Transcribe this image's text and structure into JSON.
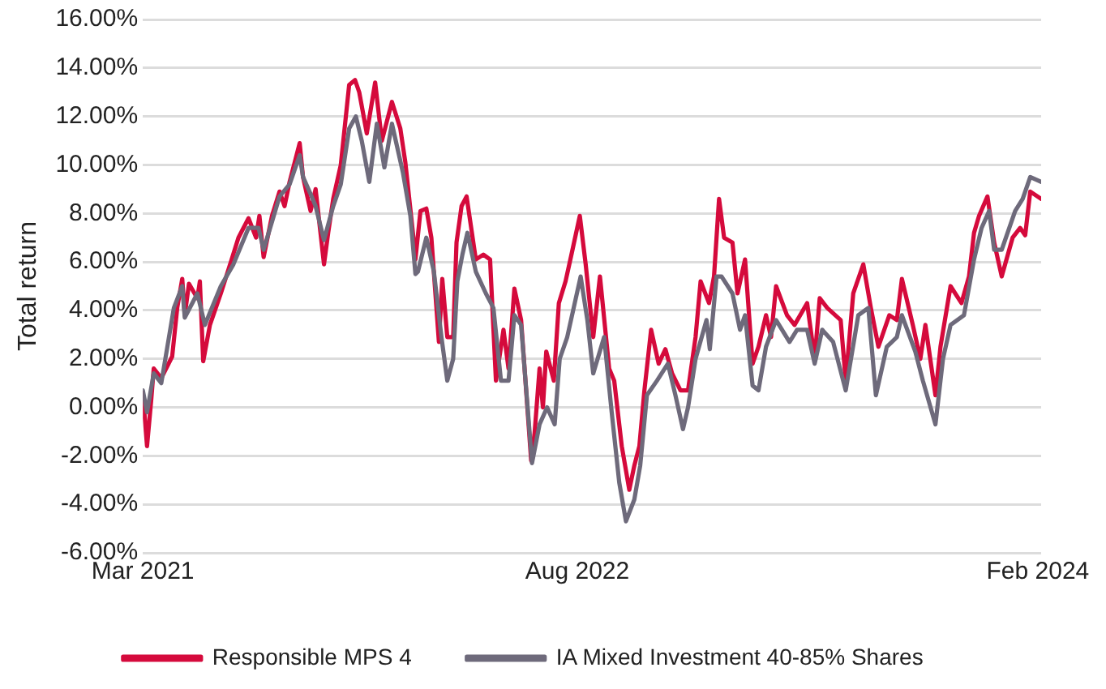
{
  "chart_data": {
    "type": "line",
    "ylabel": "Total return",
    "xlim": [
      "2021-03-01",
      "2024-02-05"
    ],
    "xticks": [
      {
        "value": "2021-03-01",
        "label": "Mar 2021"
      },
      {
        "value": "2022-08-01",
        "label": "Aug 2022"
      },
      {
        "value": "2024-02-01",
        "label": "Feb 2024"
      }
    ],
    "ylim": [
      -6,
      16
    ],
    "yticks": [
      {
        "value": -6,
        "label": "-6.00%"
      },
      {
        "value": -4,
        "label": "-4.00%"
      },
      {
        "value": -2,
        "label": "-2.00%"
      },
      {
        "value": 0,
        "label": "0.00%"
      },
      {
        "value": 2,
        "label": "2.00%"
      },
      {
        "value": 4,
        "label": "4.00%"
      },
      {
        "value": 6,
        "label": "6.00%"
      },
      {
        "value": 8,
        "label": "8.00%"
      },
      {
        "value": 10,
        "label": "10.00%"
      },
      {
        "value": 12,
        "label": "12.00%"
      },
      {
        "value": 14,
        "label": "14.00%"
      },
      {
        "value": 16,
        "label": "16.00%"
      }
    ],
    "grid": "y",
    "legend": "bottom",
    "marker": "none",
    "line_style": "solid",
    "series": [
      {
        "name": "Responsible MPS 4",
        "color": "#d50a3c",
        "x": [
          "2021-03-01",
          "2021-03-06",
          "2021-03-11",
          "2021-03-14",
          "2021-03-23",
          "2021-04-05",
          "2021-04-11",
          "2021-04-17",
          "2021-04-20",
          "2021-04-25",
          "2021-05-05",
          "2021-05-08",
          "2021-05-12",
          "2021-05-20",
          "2021-06-02",
          "2021-06-14",
          "2021-06-23",
          "2021-07-05",
          "2021-07-14",
          "2021-07-18",
          "2021-07-23",
          "2021-08-02",
          "2021-08-11",
          "2021-08-17",
          "2021-08-23",
          "2021-09-04",
          "2021-09-08",
          "2021-09-17",
          "2021-09-23",
          "2021-10-03",
          "2021-10-08",
          "2021-10-14",
          "2021-10-23",
          "2021-11-02",
          "2021-11-09",
          "2021-11-14",
          "2021-11-23",
          "2021-12-03",
          "2021-12-11",
          "2021-12-23",
          "2022-01-02",
          "2022-01-08",
          "2022-01-17",
          "2022-01-20",
          "2022-01-26",
          "2022-02-02",
          "2022-02-08",
          "2022-02-17",
          "2022-02-21",
          "2022-02-27",
          "2022-03-06",
          "2022-03-10",
          "2022-03-16",
          "2022-03-22",
          "2022-04-02",
          "2022-04-11",
          "2022-04-19",
          "2022-04-26",
          "2022-05-05",
          "2022-05-11",
          "2022-05-18",
          "2022-05-26",
          "2022-06-07",
          "2022-06-11",
          "2022-06-17",
          "2022-06-21",
          "2022-06-25",
          "2022-07-04",
          "2022-07-10",
          "2022-07-18",
          "2022-07-25",
          "2022-08-04",
          "2022-08-11",
          "2022-08-20",
          "2022-08-28",
          "2022-09-08",
          "2022-09-14",
          "2022-09-23",
          "2022-10-02",
          "2022-10-08",
          "2022-10-14",
          "2022-10-20",
          "2022-10-28",
          "2022-11-06",
          "2022-11-14",
          "2022-11-22",
          "2022-12-02",
          "2022-12-11",
          "2022-12-20",
          "2022-12-26",
          "2023-01-05",
          "2023-01-11",
          "2023-01-17",
          "2023-01-23",
          "2023-02-02",
          "2023-02-08",
          "2023-02-17",
          "2023-02-26",
          "2023-03-05",
          "2023-03-14",
          "2023-03-20",
          "2023-03-26",
          "2023-04-08",
          "2023-04-17",
          "2023-05-02",
          "2023-05-11",
          "2023-05-17",
          "2023-05-26",
          "2023-06-11",
          "2023-06-17",
          "2023-06-26",
          "2023-07-08",
          "2023-07-17",
          "2023-07-26",
          "2023-08-08",
          "2023-08-17",
          "2023-08-23",
          "2023-09-05",
          "2023-09-14",
          "2023-09-20",
          "2023-10-02",
          "2023-10-08",
          "2023-10-20",
          "2023-11-02",
          "2023-11-11",
          "2023-11-17",
          "2023-11-23",
          "2023-12-03",
          "2023-12-11",
          "2023-12-20",
          "2024-01-02",
          "2024-01-11",
          "2024-01-17",
          "2024-01-23",
          "2024-02-05"
        ],
        "values": [
          0.6,
          -1.6,
          0.3,
          1.6,
          1.2,
          2.1,
          4.1,
          5.3,
          3.8,
          5.1,
          4.5,
          5.2,
          1.9,
          3.4,
          4.7,
          6.0,
          7.0,
          7.8,
          7.0,
          7.9,
          6.2,
          7.9,
          8.9,
          8.3,
          9.3,
          10.9,
          9.5,
          8.1,
          9.0,
          5.9,
          7.2,
          8.6,
          10.0,
          13.3,
          13.5,
          13.0,
          11.3,
          13.4,
          11.0,
          12.6,
          11.5,
          10.1,
          7.2,
          6.1,
          8.1,
          8.2,
          7.0,
          2.7,
          5.3,
          2.9,
          2.9,
          6.8,
          8.3,
          8.7,
          6.1,
          6.3,
          6.1,
          1.1,
          3.2,
          1.6,
          4.9,
          3.6,
          -2.2,
          -1.1,
          1.6,
          0.0,
          2.3,
          1.1,
          4.3,
          5.2,
          6.3,
          7.9,
          5.9,
          2.9,
          5.4,
          1.6,
          1.1,
          -1.6,
          -3.4,
          -2.4,
          -1.6,
          0.7,
          3.2,
          1.8,
          2.4,
          1.4,
          0.7,
          0.7,
          2.9,
          5.2,
          4.3,
          5.4,
          8.6,
          7.0,
          6.8,
          4.7,
          6.1,
          1.8,
          2.5,
          3.8,
          2.9,
          5.0,
          3.8,
          3.4,
          4.3,
          2.0,
          4.5,
          4.1,
          3.6,
          1.1,
          4.7,
          5.9,
          4.1,
          2.5,
          3.8,
          3.6,
          5.3,
          3.4,
          2.0,
          3.4,
          0.5,
          2.5,
          5.0,
          4.3,
          5.4,
          7.2,
          7.9,
          8.7,
          6.8,
          5.4,
          7.0,
          7.4,
          7.1,
          8.9,
          8.6
        ]
      },
      {
        "name": "IA Mixed Investment 40-85% Shares",
        "color": "#6e6a7b",
        "x": [
          "2021-03-01",
          "2021-03-06",
          "2021-03-14",
          "2021-03-23",
          "2021-04-07",
          "2021-04-17",
          "2021-04-20",
          "2021-05-05",
          "2021-05-14",
          "2021-06-02",
          "2021-06-17",
          "2021-07-05",
          "2021-07-17",
          "2021-07-23",
          "2021-08-11",
          "2021-08-23",
          "2021-09-04",
          "2021-09-08",
          "2021-09-17",
          "2021-09-23",
          "2021-10-03",
          "2021-10-14",
          "2021-10-23",
          "2021-11-02",
          "2021-11-10",
          "2021-11-17",
          "2021-11-26",
          "2021-12-05",
          "2021-12-14",
          "2021-12-23",
          "2022-01-05",
          "2022-01-14",
          "2022-01-20",
          "2022-01-23",
          "2022-02-02",
          "2022-02-11",
          "2022-02-20",
          "2022-02-27",
          "2022-03-06",
          "2022-03-11",
          "2022-03-17",
          "2022-03-23",
          "2022-04-02",
          "2022-04-14",
          "2022-04-23",
          "2022-05-02",
          "2022-05-11",
          "2022-05-18",
          "2022-05-26",
          "2022-06-08",
          "2022-06-17",
          "2022-06-26",
          "2022-07-05",
          "2022-07-11",
          "2022-07-20",
          "2022-08-05",
          "2022-08-13",
          "2022-08-20",
          "2022-09-02",
          "2022-09-11",
          "2022-09-20",
          "2022-09-28",
          "2022-10-08",
          "2022-10-15",
          "2022-10-23",
          "2022-11-04",
          "2022-11-17",
          "2022-11-26",
          "2022-12-05",
          "2022-12-11",
          "2022-12-20",
          "2023-01-02",
          "2023-01-06",
          "2023-01-14",
          "2023-01-20",
          "2023-02-02",
          "2023-02-11",
          "2023-02-17",
          "2023-02-26",
          "2023-03-05",
          "2023-03-14",
          "2023-03-26",
          "2023-04-11",
          "2023-04-20",
          "2023-05-02",
          "2023-05-11",
          "2023-05-20",
          "2023-06-02",
          "2023-06-17",
          "2023-07-02",
          "2023-07-14",
          "2023-07-23",
          "2023-08-05",
          "2023-08-17",
          "2023-08-23",
          "2023-09-08",
          "2023-09-17",
          "2023-10-02",
          "2023-10-11",
          "2023-10-20",
          "2023-11-05",
          "2023-11-17",
          "2023-11-26",
          "2023-12-05",
          "2023-12-11",
          "2023-12-20",
          "2024-01-05",
          "2024-01-14",
          "2024-01-23",
          "2024-02-05"
        ],
        "values": [
          0.7,
          -0.2,
          1.4,
          1.0,
          4.1,
          5.0,
          3.7,
          4.7,
          3.4,
          5.0,
          5.9,
          7.4,
          7.4,
          6.5,
          8.7,
          9.2,
          10.4,
          9.5,
          8.8,
          8.3,
          6.9,
          8.3,
          9.2,
          11.5,
          12.0,
          11.0,
          9.3,
          11.7,
          9.9,
          11.7,
          9.7,
          7.9,
          5.5,
          5.6,
          7.0,
          5.6,
          2.9,
          1.1,
          2.0,
          5.2,
          6.3,
          7.2,
          5.6,
          4.7,
          4.1,
          1.1,
          1.1,
          3.8,
          3.4,
          -2.3,
          -0.7,
          0.0,
          -0.7,
          2.0,
          2.9,
          5.4,
          3.6,
          1.4,
          2.9,
          -0.2,
          -3.1,
          -4.7,
          -3.8,
          -2.4,
          0.5,
          1.1,
          1.8,
          0.5,
          -0.9,
          0.0,
          2.0,
          3.6,
          2.4,
          5.4,
          5.4,
          4.7,
          3.2,
          3.8,
          0.9,
          0.7,
          2.5,
          3.6,
          2.7,
          3.2,
          3.2,
          1.8,
          3.2,
          2.7,
          0.7,
          3.8,
          4.1,
          0.5,
          2.5,
          2.9,
          3.8,
          2.3,
          1.1,
          -0.7,
          2.0,
          3.4,
          3.8,
          6.1,
          7.4,
          8.1,
          6.5,
          6.5,
          8.1,
          8.6,
          9.5,
          9.3
        ]
      }
    ]
  }
}
